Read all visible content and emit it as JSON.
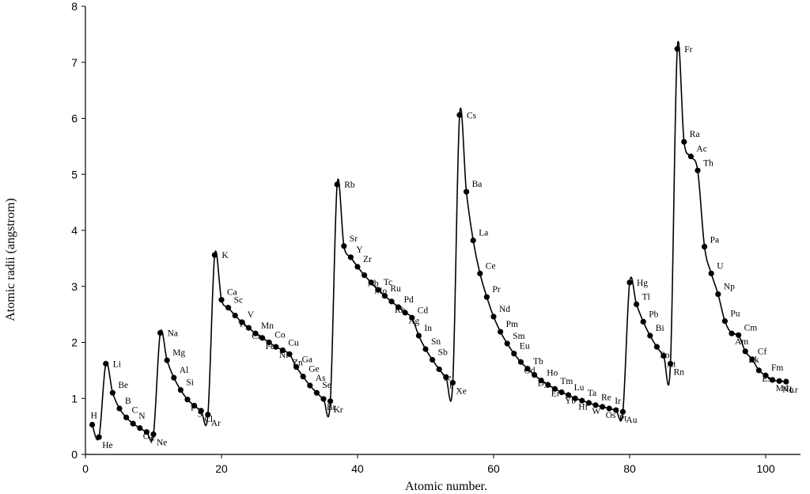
{
  "chart_data": {
    "type": "line",
    "title": "",
    "xlabel": "Atomic number.",
    "ylabel": "Atomic radii (angstrom)",
    "xlim": [
      0,
      105
    ],
    "ylim": [
      0,
      8
    ],
    "xticks": [
      0,
      20,
      40,
      60,
      80,
      100
    ],
    "yticks": [
      0,
      1,
      2,
      3,
      4,
      5,
      6,
      7,
      8
    ],
    "grid": false,
    "legend": "none",
    "series": [
      {
        "points": [
          {
            "x": 1,
            "y": 0.53,
            "label": "H"
          },
          {
            "x": 2,
            "y": 0.31,
            "label": "He"
          },
          {
            "x": 3,
            "y": 1.62,
            "label": "Li"
          },
          {
            "x": 4,
            "y": 1.1,
            "label": "Be"
          },
          {
            "x": 5,
            "y": 0.82,
            "label": "B"
          },
          {
            "x": 6,
            "y": 0.66,
            "label": "C"
          },
          {
            "x": 7,
            "y": 0.55,
            "label": "N"
          },
          {
            "x": 8,
            "y": 0.47,
            "label": "O"
          },
          {
            "x": 9,
            "y": 0.4,
            "label": "F"
          },
          {
            "x": 10,
            "y": 0.36,
            "label": "Ne"
          },
          {
            "x": 11,
            "y": 2.17,
            "label": "Na"
          },
          {
            "x": 12,
            "y": 1.68,
            "label": "Mg"
          },
          {
            "x": 13,
            "y": 1.37,
            "label": "Al"
          },
          {
            "x": 14,
            "y": 1.15,
            "label": "Si"
          },
          {
            "x": 15,
            "y": 0.98,
            "label": "P"
          },
          {
            "x": 16,
            "y": 0.87,
            "label": "S"
          },
          {
            "x": 17,
            "y": 0.78,
            "label": "Cl"
          },
          {
            "x": 18,
            "y": 0.71,
            "label": "Ar"
          },
          {
            "x": 19,
            "y": 3.56,
            "label": "K"
          },
          {
            "x": 20,
            "y": 2.76,
            "label": "Ca"
          },
          {
            "x": 21,
            "y": 2.62,
            "label": "Sc"
          },
          {
            "x": 22,
            "y": 2.48,
            "label": "Ti"
          },
          {
            "x": 23,
            "y": 2.36,
            "label": "V"
          },
          {
            "x": 24,
            "y": 2.26,
            "label": "Cr"
          },
          {
            "x": 25,
            "y": 2.16,
            "label": "Mn"
          },
          {
            "x": 26,
            "y": 2.08,
            "label": "Fe"
          },
          {
            "x": 27,
            "y": 2.0,
            "label": "Co"
          },
          {
            "x": 28,
            "y": 1.92,
            "label": "Ni"
          },
          {
            "x": 29,
            "y": 1.86,
            "label": "Cu"
          },
          {
            "x": 30,
            "y": 1.79,
            "label": "Zn"
          },
          {
            "x": 31,
            "y": 1.56,
            "label": "Ga"
          },
          {
            "x": 32,
            "y": 1.39,
            "label": "Ge"
          },
          {
            "x": 33,
            "y": 1.23,
            "label": "As"
          },
          {
            "x": 34,
            "y": 1.1,
            "label": "Se"
          },
          {
            "x": 35,
            "y": 0.99,
            "label": "Br"
          },
          {
            "x": 36,
            "y": 0.95,
            "label": "Kr"
          },
          {
            "x": 37,
            "y": 4.82,
            "label": "Rb"
          },
          {
            "x": 38,
            "y": 3.72,
            "label": "Sr"
          },
          {
            "x": 39,
            "y": 3.52,
            "label": "Y"
          },
          {
            "x": 40,
            "y": 3.35,
            "label": "Zr"
          },
          {
            "x": 41,
            "y": 3.2,
            "label": "Nb"
          },
          {
            "x": 42,
            "y": 3.07,
            "label": "Mo"
          },
          {
            "x": 43,
            "y": 2.94,
            "label": "Tc"
          },
          {
            "x": 44,
            "y": 2.83,
            "label": "Ru"
          },
          {
            "x": 45,
            "y": 2.73,
            "label": "Rh"
          },
          {
            "x": 46,
            "y": 2.63,
            "label": "Pd"
          },
          {
            "x": 47,
            "y": 2.53,
            "label": "Ag"
          },
          {
            "x": 48,
            "y": 2.44,
            "label": "Cd"
          },
          {
            "x": 49,
            "y": 2.12,
            "label": "In"
          },
          {
            "x": 50,
            "y": 1.88,
            "label": "Sn"
          },
          {
            "x": 51,
            "y": 1.69,
            "label": "Sb"
          },
          {
            "x": 52,
            "y": 1.52,
            "label": "Te"
          },
          {
            "x": 53,
            "y": 1.38,
            "label": "I"
          },
          {
            "x": 54,
            "y": 1.28,
            "label": "Xe"
          },
          {
            "x": 55,
            "y": 6.06,
            "label": "Cs"
          },
          {
            "x": 56,
            "y": 4.69,
            "label": "Ba"
          },
          {
            "x": 57,
            "y": 3.82,
            "label": "La"
          },
          {
            "x": 58,
            "y": 3.23,
            "label": "Ce"
          },
          {
            "x": 59,
            "y": 2.81,
            "label": "Pr"
          },
          {
            "x": 60,
            "y": 2.46,
            "label": "Nd"
          },
          {
            "x": 61,
            "y": 2.19,
            "label": "Pm"
          },
          {
            "x": 62,
            "y": 1.98,
            "label": "Sm"
          },
          {
            "x": 63,
            "y": 1.8,
            "label": "Eu"
          },
          {
            "x": 64,
            "y": 1.65,
            "label": "Gd"
          },
          {
            "x": 65,
            "y": 1.53,
            "label": "Tb"
          },
          {
            "x": 66,
            "y": 1.42,
            "label": "Dy"
          },
          {
            "x": 67,
            "y": 1.32,
            "label": "Ho"
          },
          {
            "x": 68,
            "y": 1.24,
            "label": "Er"
          },
          {
            "x": 69,
            "y": 1.17,
            "label": "Tm"
          },
          {
            "x": 70,
            "y": 1.11,
            "label": "Yb"
          },
          {
            "x": 71,
            "y": 1.06,
            "label": "Lu"
          },
          {
            "x": 72,
            "y": 1.0,
            "label": "Hf"
          },
          {
            "x": 73,
            "y": 0.96,
            "label": "Ta"
          },
          {
            "x": 74,
            "y": 0.92,
            "label": "W"
          },
          {
            "x": 75,
            "y": 0.88,
            "label": "Re"
          },
          {
            "x": 76,
            "y": 0.85,
            "label": "Os"
          },
          {
            "x": 77,
            "y": 0.82,
            "label": "Ir"
          },
          {
            "x": 78,
            "y": 0.79,
            "label": "Pt"
          },
          {
            "x": 79,
            "y": 0.76,
            "label": "Au"
          },
          {
            "x": 80,
            "y": 3.07,
            "label": "Hg"
          },
          {
            "x": 81,
            "y": 2.68,
            "label": "Tl"
          },
          {
            "x": 82,
            "y": 2.37,
            "label": "Pb"
          },
          {
            "x": 83,
            "y": 2.12,
            "label": "Bi"
          },
          {
            "x": 84,
            "y": 1.92,
            "label": "Po"
          },
          {
            "x": 85,
            "y": 1.76,
            "label": "At"
          },
          {
            "x": 86,
            "y": 1.62,
            "label": "Rn"
          },
          {
            "x": 87,
            "y": 7.24,
            "label": "Fr"
          },
          {
            "x": 88,
            "y": 5.58,
            "label": "Ra"
          },
          {
            "x": 89,
            "y": 5.32,
            "label": "Ac"
          },
          {
            "x": 90,
            "y": 5.07,
            "label": "Th"
          },
          {
            "x": 91,
            "y": 3.71,
            "label": "Pa"
          },
          {
            "x": 92,
            "y": 3.23,
            "label": "U"
          },
          {
            "x": 93,
            "y": 2.86,
            "label": "Np"
          },
          {
            "x": 94,
            "y": 2.38,
            "label": "Pu"
          },
          {
            "x": 95,
            "y": 2.16,
            "label": "Am"
          },
          {
            "x": 96,
            "y": 2.13,
            "label": "Cm"
          },
          {
            "x": 97,
            "y": 1.84,
            "label": "Bk"
          },
          {
            "x": 98,
            "y": 1.7,
            "label": "Cf"
          },
          {
            "x": 99,
            "y": 1.5,
            "label": "Es"
          },
          {
            "x": 100,
            "y": 1.41,
            "label": "Fm"
          },
          {
            "x": 101,
            "y": 1.33,
            "label": "Md"
          },
          {
            "x": 102,
            "y": 1.31,
            "label": "No"
          },
          {
            "x": 103,
            "y": 1.3,
            "label": "Lr"
          }
        ]
      }
    ]
  }
}
